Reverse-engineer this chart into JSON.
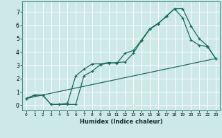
{
  "xlabel": "Humidex (Indice chaleur)",
  "bg_color": "#cce8e8",
  "grid_color": "#ffffff",
  "line_color": "#1a6b5a",
  "xlim": [
    -0.5,
    23.5
  ],
  "ylim": [
    -0.4,
    7.8
  ],
  "yticks": [
    0,
    1,
    2,
    3,
    4,
    5,
    6,
    7
  ],
  "xticks": [
    0,
    1,
    2,
    3,
    4,
    5,
    6,
    7,
    8,
    9,
    10,
    11,
    12,
    13,
    14,
    15,
    16,
    17,
    18,
    19,
    20,
    21,
    22,
    23
  ],
  "line1_x": [
    0,
    1,
    2,
    3,
    4,
    5,
    6,
    7,
    8,
    9,
    10,
    11,
    12,
    13,
    14,
    15,
    16,
    17,
    18,
    19,
    20,
    21,
    22,
    23
  ],
  "line1_y": [
    0.5,
    0.75,
    0.75,
    0.05,
    0.05,
    0.15,
    2.2,
    2.7,
    3.1,
    3.1,
    3.2,
    3.15,
    3.9,
    4.1,
    4.9,
    5.75,
    6.15,
    6.65,
    7.25,
    6.55,
    4.9,
    4.5,
    4.4,
    3.5
  ],
  "line2_x": [
    0,
    1,
    2,
    3,
    4,
    5,
    6,
    7,
    8,
    9,
    10,
    11,
    12,
    13,
    14,
    15,
    16,
    17,
    18,
    19,
    20,
    21,
    22,
    23
  ],
  "line2_y": [
    0.5,
    0.75,
    0.75,
    0.05,
    0.05,
    0.05,
    0.05,
    2.2,
    2.55,
    3.05,
    3.15,
    3.2,
    3.25,
    3.9,
    4.85,
    5.7,
    6.1,
    6.7,
    7.25,
    7.25,
    5.95,
    5.0,
    4.45,
    3.5
  ],
  "line3_x": [
    0,
    23
  ],
  "line3_y": [
    0.5,
    3.5
  ]
}
